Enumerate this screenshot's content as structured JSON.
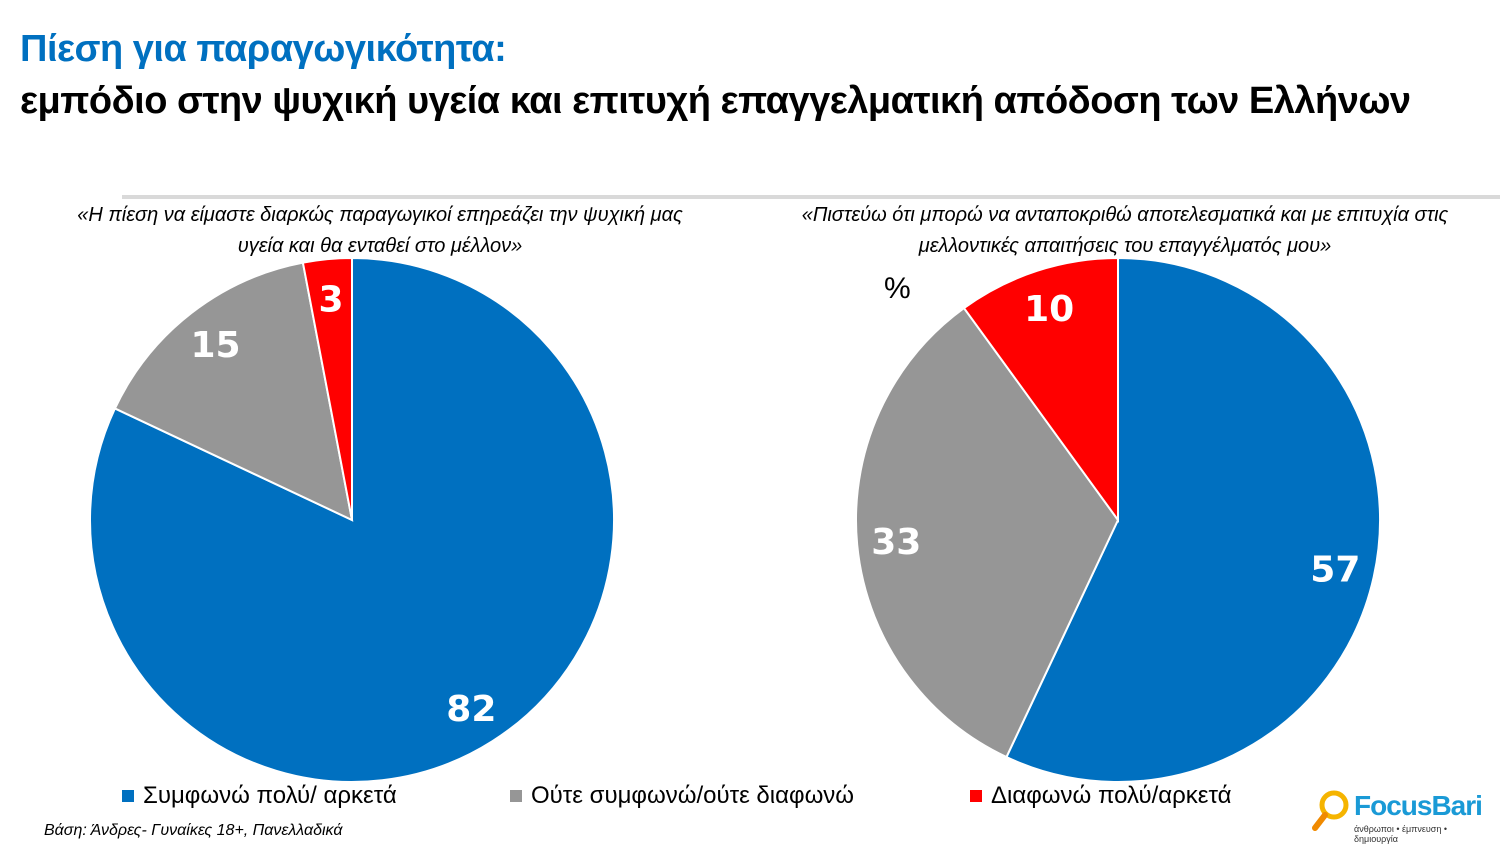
{
  "title_line1": "Πίεση για παραγωγικότητα:",
  "title_line2": "εμπόδιο στην ψυχική υγεία και επιτυχή επαγγελματική απόδοση των Ελλήνων",
  "unit_label": "%",
  "colors": {
    "agree": "#0070C0",
    "neutral": "#969696",
    "disagree": "#FF0000",
    "title": "#0070C0"
  },
  "legend": [
    {
      "label": "Συμφωνώ πολύ/ αρκετά",
      "color": "#0070C0"
    },
    {
      "label": "Ούτε συμφωνώ/ούτε διαφωνώ",
      "color": "#969696"
    },
    {
      "label": "Διαφωνώ πολύ/αρκετά",
      "color": "#FF0000"
    }
  ],
  "base_note": "Βάση: Άνδρες- Γυναίκες 18+, Πανελλαδικά",
  "logo": {
    "brand": "FocusBari",
    "tagline": "άνθρωποι • έμπνευση • δημιουργία"
  },
  "chart_data": [
    {
      "type": "pie",
      "title": "«Η πίεση να είμαστε διαρκώς παραγωγικοί επηρεάζει την ψυχική μας υγεία και θα ενταθεί στο μέλλον»",
      "categories": [
        "Συμφωνώ πολύ/ αρκετά",
        "Ούτε συμφωνώ/ούτε διαφωνώ",
        "Διαφωνώ πολύ/αρκετά"
      ],
      "values": [
        82,
        15,
        3
      ],
      "data_labels": [
        "82",
        "15",
        "3"
      ]
    },
    {
      "type": "pie",
      "title": "«Πιστεύω ότι μπορώ να ανταποκριθώ αποτελεσματικά και με επιτυχία στις μελλοντικές απαιτήσεις του επαγγέλματός μου»",
      "categories": [
        "Συμφωνώ πολύ/ αρκετά",
        "Ούτε συμφωνώ/ούτε διαφωνώ",
        "Διαφωνώ πολύ/αρκετά"
      ],
      "values": [
        57,
        33,
        10
      ],
      "data_labels": [
        "57",
        "33",
        "10"
      ]
    }
  ]
}
